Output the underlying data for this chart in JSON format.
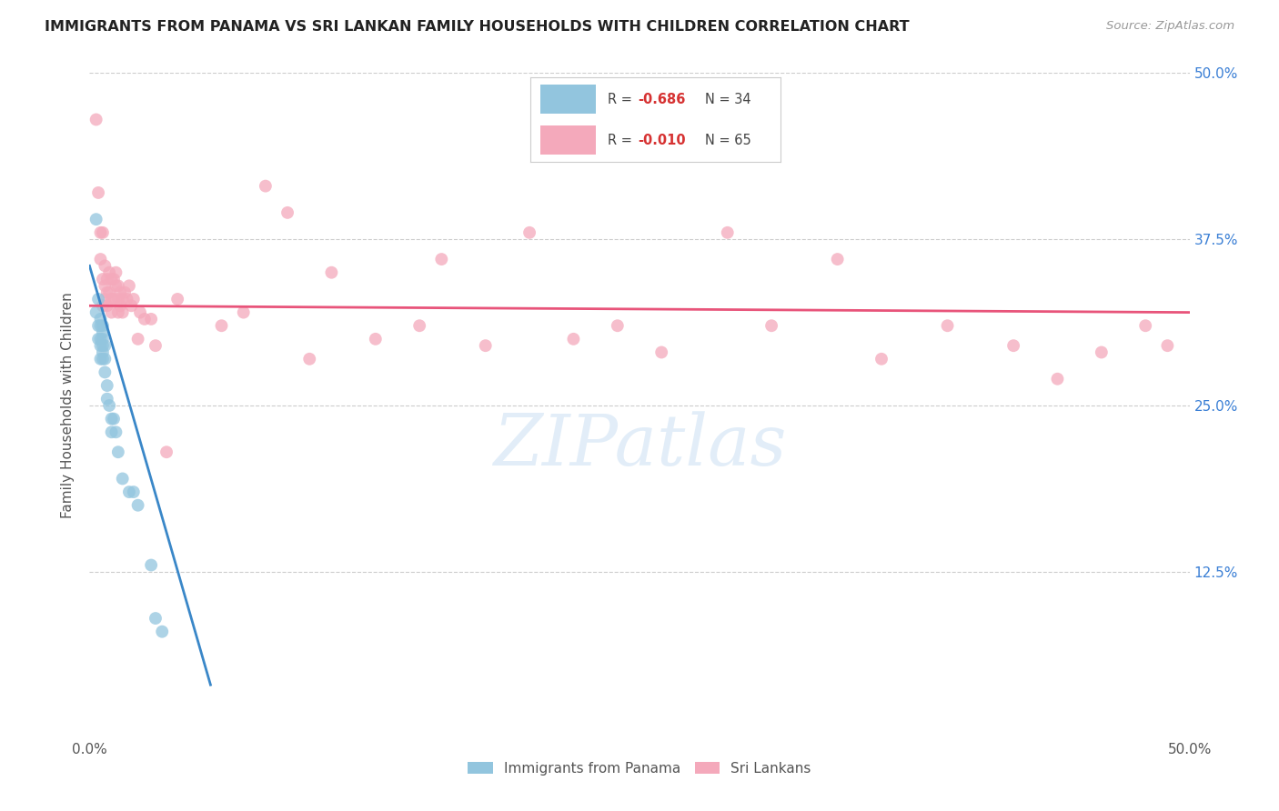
{
  "title": "IMMIGRANTS FROM PANAMA VS SRI LANKAN FAMILY HOUSEHOLDS WITH CHILDREN CORRELATION CHART",
  "source": "Source: ZipAtlas.com",
  "ylabel": "Family Households with Children",
  "xlim": [
    0.0,
    0.5
  ],
  "ylim": [
    0.0,
    0.5
  ],
  "ytick_values": [
    0.125,
    0.25,
    0.375,
    0.5
  ],
  "xtick_values": [
    0.0,
    0.5
  ],
  "legend1_R": "R = ",
  "legend1_R_val": "-0.686",
  "legend1_N": "N = 34",
  "legend2_R": "R = ",
  "legend2_R_val": "-0.010",
  "legend2_N": "N = 65",
  "legend_bottom1": "Immigrants from Panama",
  "legend_bottom2": "Sri Lankans",
  "blue_color": "#92c5de",
  "pink_color": "#f4a9bb",
  "blue_line_color": "#3a87c8",
  "pink_line_color": "#e8547a",
  "right_tick_color": "#3a7fd5",
  "watermark": "ZIPatlas",
  "blue_points_x": [
    0.003,
    0.003,
    0.004,
    0.004,
    0.004,
    0.005,
    0.005,
    0.005,
    0.005,
    0.005,
    0.006,
    0.006,
    0.006,
    0.006,
    0.006,
    0.006,
    0.007,
    0.007,
    0.007,
    0.008,
    0.008,
    0.009,
    0.01,
    0.01,
    0.011,
    0.012,
    0.013,
    0.015,
    0.018,
    0.02,
    0.022,
    0.028,
    0.03,
    0.033
  ],
  "blue_points_y": [
    0.39,
    0.32,
    0.33,
    0.31,
    0.3,
    0.315,
    0.31,
    0.3,
    0.295,
    0.285,
    0.31,
    0.305,
    0.3,
    0.295,
    0.29,
    0.285,
    0.295,
    0.285,
    0.275,
    0.265,
    0.255,
    0.25,
    0.24,
    0.23,
    0.24,
    0.23,
    0.215,
    0.195,
    0.185,
    0.185,
    0.175,
    0.13,
    0.09,
    0.08
  ],
  "pink_points_x": [
    0.003,
    0.004,
    0.005,
    0.005,
    0.006,
    0.006,
    0.006,
    0.007,
    0.007,
    0.007,
    0.008,
    0.008,
    0.008,
    0.009,
    0.009,
    0.01,
    0.01,
    0.01,
    0.011,
    0.011,
    0.012,
    0.012,
    0.013,
    0.013,
    0.013,
    0.014,
    0.014,
    0.015,
    0.015,
    0.016,
    0.017,
    0.018,
    0.019,
    0.02,
    0.022,
    0.023,
    0.025,
    0.028,
    0.03,
    0.035,
    0.04,
    0.06,
    0.07,
    0.08,
    0.09,
    0.1,
    0.11,
    0.13,
    0.15,
    0.16,
    0.18,
    0.2,
    0.22,
    0.24,
    0.26,
    0.29,
    0.31,
    0.34,
    0.36,
    0.39,
    0.42,
    0.44,
    0.46,
    0.48,
    0.49
  ],
  "pink_points_y": [
    0.465,
    0.41,
    0.38,
    0.36,
    0.38,
    0.345,
    0.325,
    0.355,
    0.34,
    0.33,
    0.345,
    0.335,
    0.325,
    0.35,
    0.335,
    0.345,
    0.33,
    0.32,
    0.345,
    0.33,
    0.35,
    0.34,
    0.34,
    0.33,
    0.32,
    0.335,
    0.325,
    0.33,
    0.32,
    0.335,
    0.33,
    0.34,
    0.325,
    0.33,
    0.3,
    0.32,
    0.315,
    0.315,
    0.295,
    0.215,
    0.33,
    0.31,
    0.32,
    0.415,
    0.395,
    0.285,
    0.35,
    0.3,
    0.31,
    0.36,
    0.295,
    0.38,
    0.3,
    0.31,
    0.29,
    0.38,
    0.31,
    0.36,
    0.285,
    0.31,
    0.295,
    0.27,
    0.29,
    0.31,
    0.295
  ],
  "blue_trend_x": [
    0.0,
    0.055
  ],
  "blue_trend_y": [
    0.355,
    0.04
  ],
  "pink_trend_x": [
    0.0,
    0.5
  ],
  "pink_trend_y": [
    0.325,
    0.32
  ]
}
